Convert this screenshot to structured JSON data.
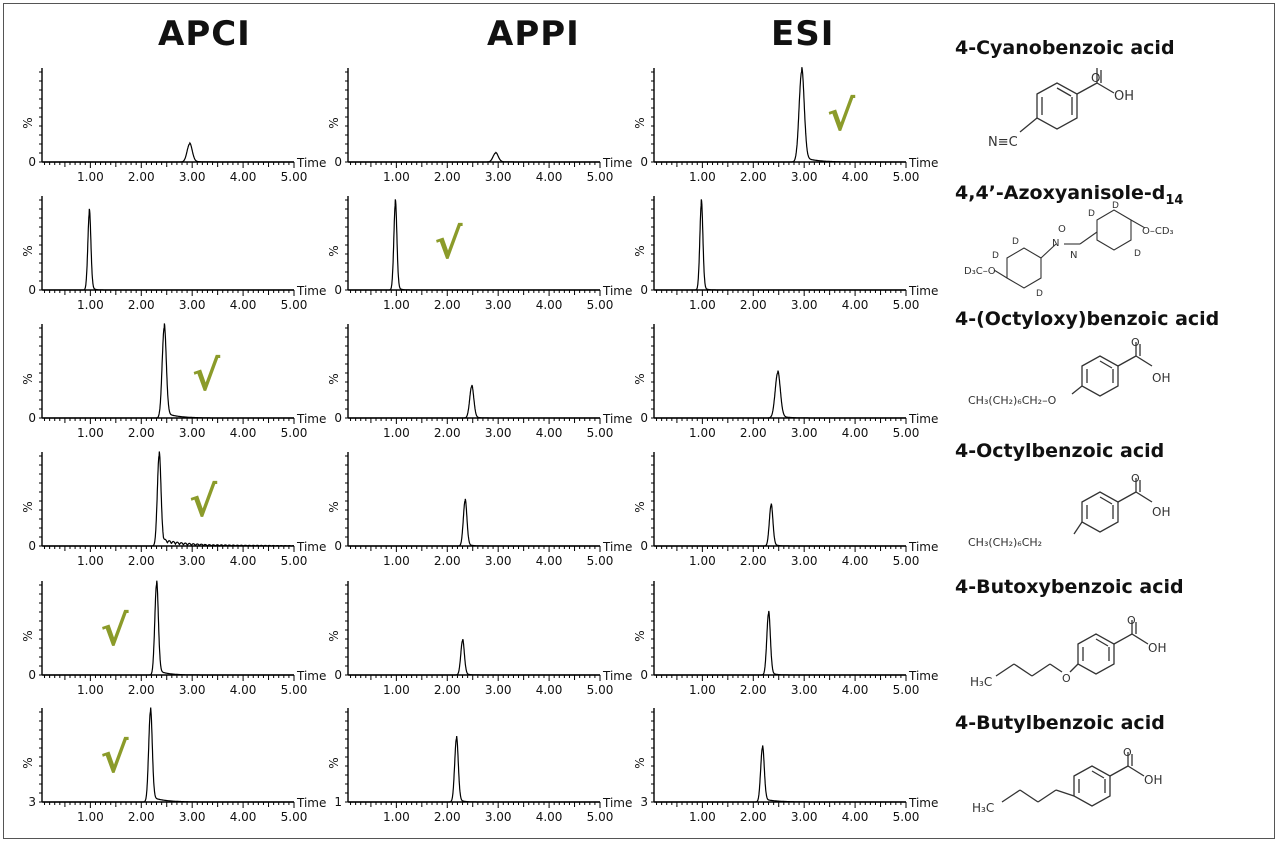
{
  "headers": {
    "apci": "APCI",
    "appi": "APPI",
    "esi": "ESI"
  },
  "compounds": [
    {
      "name": "4-Cyanobenzoic acid",
      "struct": {
        "left": "N≡C",
        "right": "OH"
      }
    },
    {
      "name_main": "4,4’-Azoxyanisole-d",
      "name_sub": "14",
      "struct": {
        "left": "D₃C–O",
        "right": "O–CD₃",
        "label": "D"
      }
    },
    {
      "name": "4-(Octyloxy)benzoic acid",
      "struct": {
        "left": "CH₃(CH₂)₆CH₂–O",
        "right": "OH"
      }
    },
    {
      "name": "4-Octylbenzoic acid",
      "struct": {
        "left": "CH₃(CH₂)₆CH₂",
        "right": "OH"
      }
    },
    {
      "name": "4-Butoxybenzoic acid",
      "struct": {
        "left": "H₃C",
        "right": "OH"
      }
    },
    {
      "name": "4-Butylbenzoic acid",
      "struct": {
        "left": "H₃C",
        "right": "OH"
      }
    }
  ],
  "check_color": "#8b9b2a",
  "check_glyph": "√",
  "chart_data": {
    "type": "line",
    "xlabel": "Time",
    "ylabel": "%",
    "xticks": [
      "1.00",
      "2.00",
      "3.00",
      "4.00",
      "5.00"
    ],
    "xlim": [
      0.05,
      5.0
    ],
    "ylim": [
      0,
      100
    ],
    "columns": [
      "APCI",
      "APPI",
      "ESI"
    ],
    "rows": [
      {
        "compound": "4-Cyanobenzoic acid",
        "panels": [
          {
            "method": "APCI",
            "ymin_label": "0",
            "peak_time": 2.95,
            "peak_height": 20,
            "width": 0.05,
            "tail": 0.05,
            "check": false
          },
          {
            "method": "APPI",
            "ymin_label": "0",
            "peak_time": 2.95,
            "peak_height": 10,
            "width": 0.05,
            "tail": 0.05,
            "check": false
          },
          {
            "method": "ESI",
            "ymin_label": "0",
            "peak_time": 2.95,
            "peak_height": 100,
            "width": 0.05,
            "tail": 0.08,
            "check": true
          }
        ]
      },
      {
        "compound": "4,4’-Azoxyanisole-d14",
        "panels": [
          {
            "method": "APCI",
            "ymin_label": "0",
            "peak_time": 0.98,
            "peak_height": 85,
            "width": 0.03,
            "tail": 0.02,
            "check": false
          },
          {
            "method": "APPI",
            "ymin_label": "0",
            "peak_time": 0.98,
            "peak_height": 95,
            "width": 0.03,
            "tail": 0.02,
            "check": true
          },
          {
            "method": "ESI",
            "ymin_label": "0",
            "peak_time": 0.98,
            "peak_height": 95,
            "width": 0.03,
            "tail": 0.02,
            "check": false
          }
        ]
      },
      {
        "compound": "4-(Octyloxy)benzoic acid",
        "panels": [
          {
            "method": "APCI",
            "ymin_label": "0",
            "peak_time": 2.45,
            "peak_height": 100,
            "width": 0.04,
            "tail": 0.08,
            "check": true
          },
          {
            "method": "APPI",
            "ymin_label": "0",
            "peak_time": 2.48,
            "peak_height": 35,
            "width": 0.04,
            "tail": 0.03,
            "check": false
          },
          {
            "method": "ESI",
            "ymin_label": "0",
            "peak_time": 2.48,
            "peak_height": 50,
            "width": 0.05,
            "tail": 0.05,
            "check": false
          }
        ]
      },
      {
        "compound": "4-Octylbenzoic acid",
        "panels": [
          {
            "method": "APCI",
            "ymin_label": "0",
            "peak_time": 2.35,
            "peak_height": 100,
            "width": 0.035,
            "tail": 0.1,
            "check": true
          },
          {
            "method": "APPI",
            "ymin_label": "0",
            "peak_time": 2.35,
            "peak_height": 50,
            "width": 0.035,
            "tail": 0.03,
            "check": false
          },
          {
            "method": "ESI",
            "ymin_label": "0",
            "peak_time": 2.35,
            "peak_height": 45,
            "width": 0.035,
            "tail": 0.03,
            "check": false
          }
        ]
      },
      {
        "compound": "4-Butoxybenzoic acid",
        "panels": [
          {
            "method": "APCI",
            "ymin_label": "0",
            "peak_time": 2.3,
            "peak_height": 100,
            "width": 0.035,
            "tail": 0.06,
            "check": true
          },
          {
            "method": "APPI",
            "ymin_label": "0",
            "peak_time": 2.3,
            "peak_height": 38,
            "width": 0.035,
            "tail": 0.03,
            "check": false
          },
          {
            "method": "ESI",
            "ymin_label": "0",
            "peak_time": 2.3,
            "peak_height": 68,
            "width": 0.035,
            "tail": 0.03,
            "check": false
          }
        ]
      },
      {
        "compound": "4-Butylbenzoic acid",
        "panels": [
          {
            "method": "APCI",
            "ymin_label": "3",
            "peak_time": 2.18,
            "peak_height": 100,
            "width": 0.035,
            "tail": 0.08,
            "check": true
          },
          {
            "method": "APPI",
            "ymin_label": "1",
            "peak_time": 2.18,
            "peak_height": 70,
            "width": 0.035,
            "tail": 0.03,
            "check": false
          },
          {
            "method": "ESI",
            "ymin_label": "3",
            "peak_time": 2.18,
            "peak_height": 60,
            "width": 0.035,
            "tail": 0.08,
            "check": false
          }
        ]
      }
    ]
  }
}
